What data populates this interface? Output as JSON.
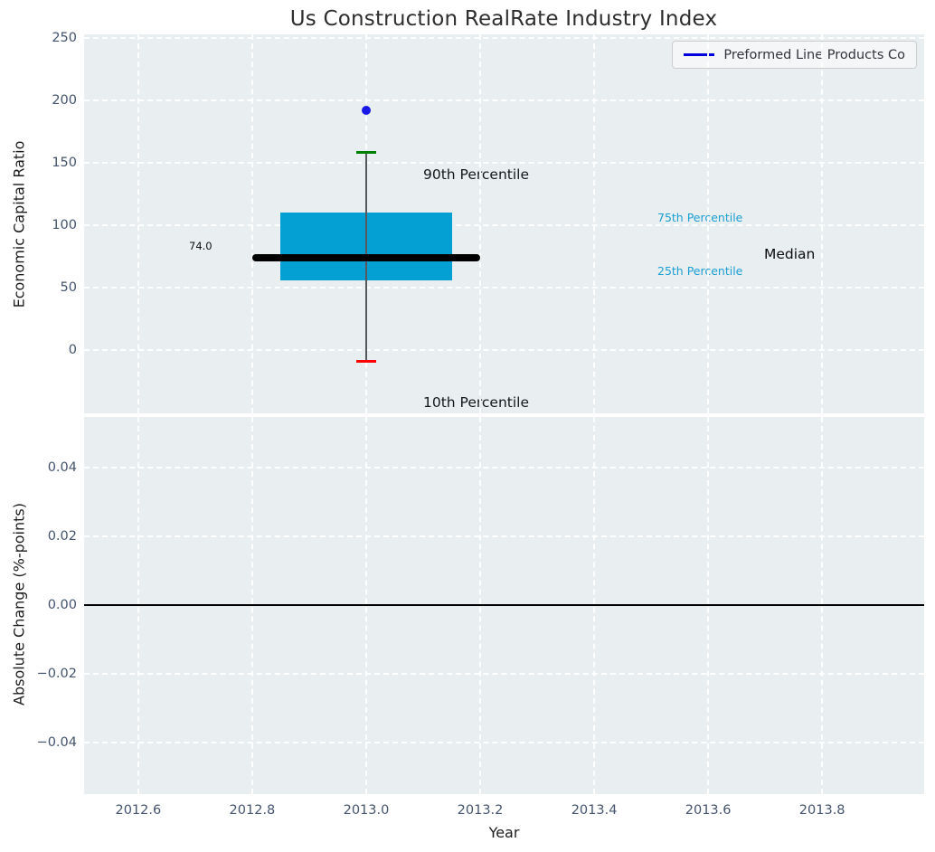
{
  "figure_title": "Us Construction RealRate Industry Index",
  "chart_data": [
    {
      "type": "boxplot",
      "title": "Us Construction RealRate Industry Index",
      "ylabel": "Economic Capital Ratio",
      "xlabel": "",
      "grid": true,
      "xlim": [
        2012.505,
        2013.979
      ],
      "ylim": [
        -51,
        253
      ],
      "xticks": [
        2012.6,
        2012.8,
        2013.0,
        2013.2,
        2013.4,
        2013.6,
        2013.8
      ],
      "xtick_labels": [],
      "yticks": [
        0,
        50,
        100,
        150,
        200,
        250
      ],
      "ytick_labels": [
        "0",
        "50",
        "100",
        "150",
        "200",
        "250"
      ],
      "legend": {
        "position": "upper right",
        "entries": [
          {
            "label": "Preformed Line Products Co",
            "color": "#0000dd"
          }
        ]
      },
      "box": {
        "x_center": 2013.0,
        "x_left": 2012.85,
        "x_right": 2013.15,
        "median": 74.0,
        "median_label": "74.0",
        "median_x_left": 2012.8,
        "median_x_right": 2013.2,
        "q1": 56,
        "q3": 110,
        "p10": -9,
        "p90": 158.5,
        "colors": {
          "box": "#049fd3",
          "median": "#000000",
          "p90_cap": "#008000",
          "p10_cap": "#fe0000",
          "whisker": "#55595e"
        }
      },
      "points": [
        {
          "series": "Preformed Line Products Co",
          "x": 2013.0,
          "y": 192,
          "color": "#1a1ae6"
        }
      ],
      "annotations": {
        "p90": "90th Percentile",
        "p10": "10th Percentile",
        "p75": "75th Percentile",
        "p25": "25th Percentile",
        "median": "Median"
      }
    },
    {
      "type": "line",
      "title": "",
      "ylabel": "Absolute Change (%-points)",
      "xlabel": "Year",
      "grid": true,
      "xlim": [
        2012.505,
        2013.979
      ],
      "ylim": [
        -0.055,
        0.0547
      ],
      "xticks": [
        2012.6,
        2012.8,
        2013.0,
        2013.2,
        2013.4,
        2013.6,
        2013.8
      ],
      "xtick_labels": [
        "2012.6",
        "2012.8",
        "2013.0",
        "2013.2",
        "2013.4",
        "2013.6",
        "2013.8"
      ],
      "yticks": [
        0.04,
        0.02,
        0.0,
        -0.02,
        -0.04
      ],
      "ytick_labels": [
        "0.04",
        "0.02",
        "0.00",
        "−0.02",
        "−0.04"
      ],
      "series": [],
      "zero_line": 0.0
    }
  ],
  "colors": {
    "axes_background": "#e9eef0",
    "gridline": "#ffffff",
    "tick_label": "#44546e",
    "text": "#1c1c1c",
    "percentile_label": "#1a9fd4"
  }
}
